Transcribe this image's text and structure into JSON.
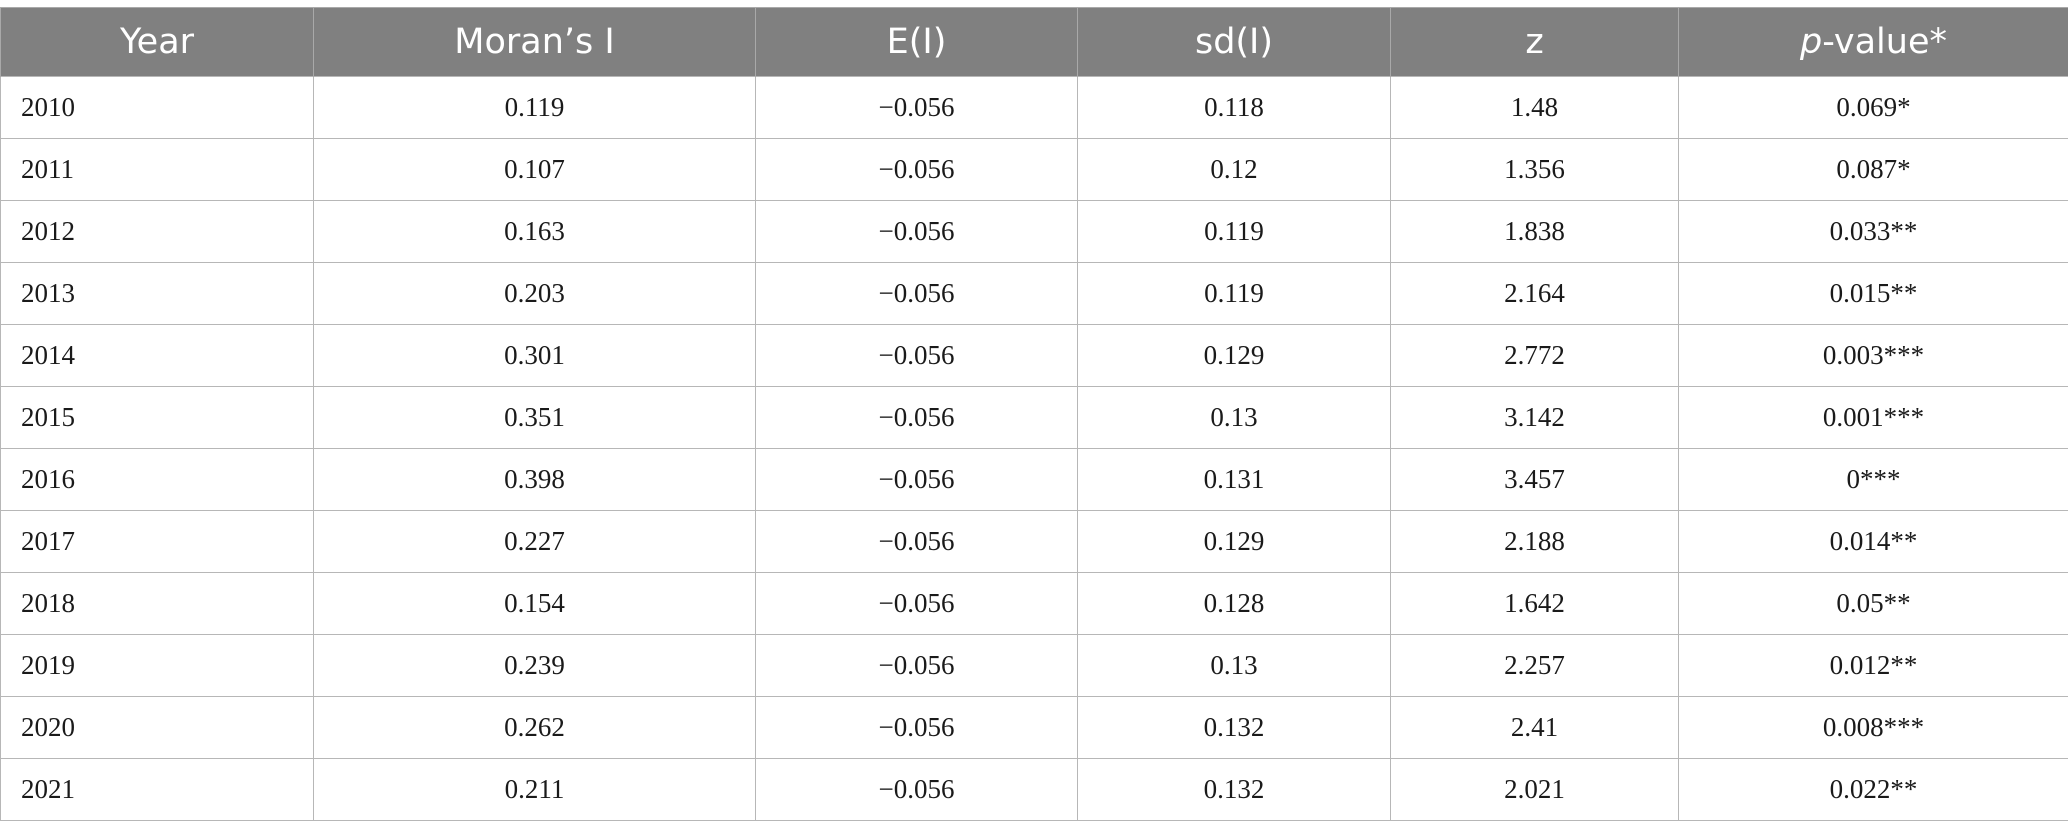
{
  "table": {
    "headers": {
      "year": "Year",
      "morans_i": "Moran’s I",
      "e_i": "E(I)",
      "sd_i": "sd(I)",
      "z": "z",
      "p_value_italic": "p",
      "p_value_rest": "-value*"
    },
    "rows": [
      {
        "year": "2010",
        "morans_i": "0.119",
        "e_i": "−0.056",
        "sd_i": "0.118",
        "z": "1.48",
        "p_value": "0.069*"
      },
      {
        "year": "2011",
        "morans_i": "0.107",
        "e_i": "−0.056",
        "sd_i": "0.12",
        "z": "1.356",
        "p_value": "0.087*"
      },
      {
        "year": "2012",
        "morans_i": "0.163",
        "e_i": "−0.056",
        "sd_i": "0.119",
        "z": "1.838",
        "p_value": "0.033**"
      },
      {
        "year": "2013",
        "morans_i": "0.203",
        "e_i": "−0.056",
        "sd_i": "0.119",
        "z": "2.164",
        "p_value": "0.015**"
      },
      {
        "year": "2014",
        "morans_i": "0.301",
        "e_i": "−0.056",
        "sd_i": "0.129",
        "z": "2.772",
        "p_value": "0.003***"
      },
      {
        "year": "2015",
        "morans_i": "0.351",
        "e_i": "−0.056",
        "sd_i": "0.13",
        "z": "3.142",
        "p_value": "0.001***"
      },
      {
        "year": "2016",
        "morans_i": "0.398",
        "e_i": "−0.056",
        "sd_i": "0.131",
        "z": "3.457",
        "p_value": "0***"
      },
      {
        "year": "2017",
        "morans_i": "0.227",
        "e_i": "−0.056",
        "sd_i": "0.129",
        "z": "2.188",
        "p_value": "0.014**"
      },
      {
        "year": "2018",
        "morans_i": "0.154",
        "e_i": "−0.056",
        "sd_i": "0.128",
        "z": "1.642",
        "p_value": "0.05**"
      },
      {
        "year": "2019",
        "morans_i": "0.239",
        "e_i": "−0.056",
        "sd_i": "0.13",
        "z": "2.257",
        "p_value": "0.012**"
      },
      {
        "year": "2020",
        "morans_i": "0.262",
        "e_i": "−0.056",
        "sd_i": "0.132",
        "z": "2.41",
        "p_value": "0.008***"
      },
      {
        "year": "2021",
        "morans_i": "0.211",
        "e_i": "−0.056",
        "sd_i": "0.132",
        "z": "2.021",
        "p_value": "0.022**"
      }
    ]
  },
  "colors": {
    "header_bg": "#808080",
    "header_text": "#ffffff",
    "grid": "#b7b7b7",
    "cell_text": "#1a1a1a"
  }
}
